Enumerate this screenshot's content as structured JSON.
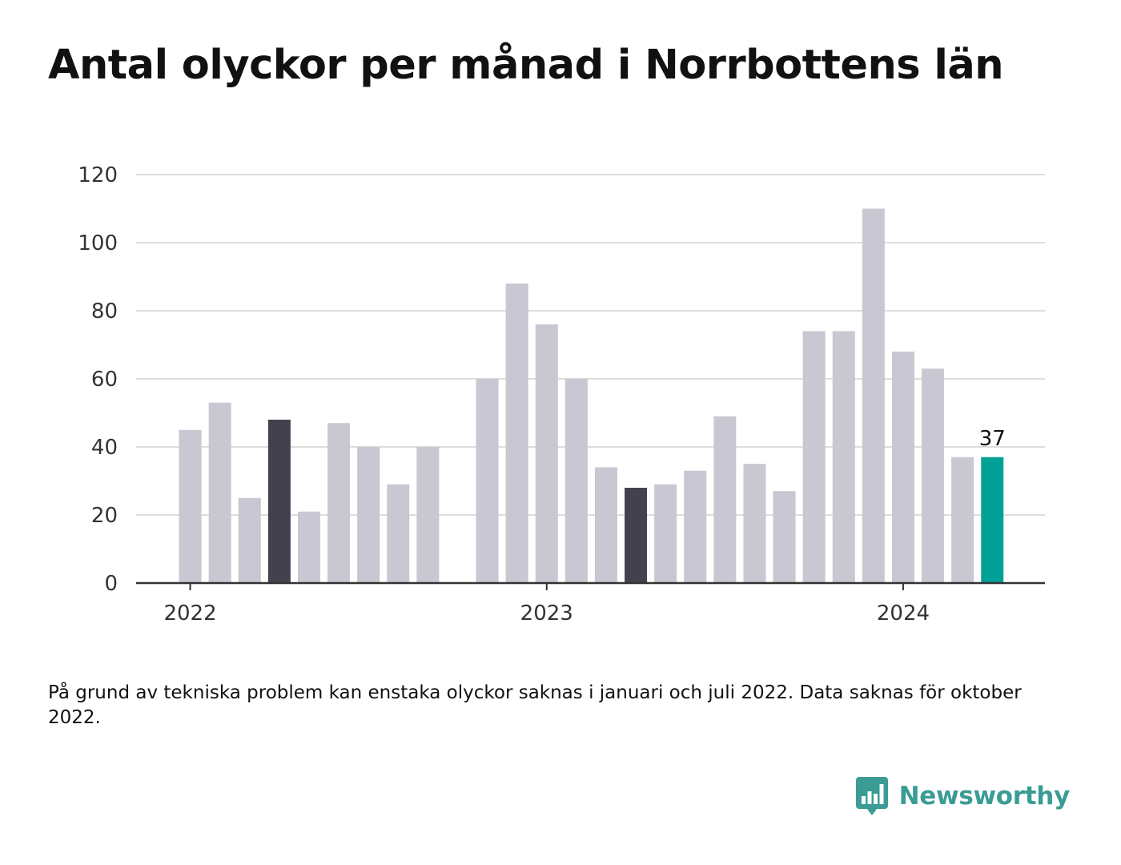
{
  "title": "Antal olyckor per månad i Norrbottens län",
  "footnote": "På grund av tekniska problem kan enstaka olyckor saknas i januari och juli 2022. Data saknas för oktober 2022.",
  "brand": {
    "name": "Newsworthy",
    "icon": "bar-chart-speech-bubble-icon",
    "color": "#3a9c95"
  },
  "colors": {
    "default_bar": "#c8c7d2",
    "dark_bar": "#43414d",
    "highlight_bar": "#00a196",
    "grid": "#dddddd",
    "axis": "#333333"
  },
  "chart_data": {
    "type": "bar",
    "title": "Antal olyckor per månad i Norrbottens län",
    "xlabel": "",
    "ylabel": "",
    "ylim": [
      0,
      120
    ],
    "yticks": [
      0,
      20,
      40,
      60,
      80,
      100,
      120
    ],
    "grid": true,
    "x_tick_labels": [
      {
        "label": "2022",
        "month": "2022-01"
      },
      {
        "label": "2023",
        "month": "2023-01"
      },
      {
        "label": "2024",
        "month": "2024-01"
      }
    ],
    "bars": [
      {
        "month": "2022-01",
        "value": 45,
        "color": "default"
      },
      {
        "month": "2022-02",
        "value": 53,
        "color": "default"
      },
      {
        "month": "2022-03",
        "value": 25,
        "color": "default"
      },
      {
        "month": "2022-04",
        "value": 48,
        "color": "dark"
      },
      {
        "month": "2022-05",
        "value": 21,
        "color": "default"
      },
      {
        "month": "2022-06",
        "value": 47,
        "color": "default"
      },
      {
        "month": "2022-07",
        "value": 40,
        "color": "default"
      },
      {
        "month": "2022-08",
        "value": 29,
        "color": "default"
      },
      {
        "month": "2022-09",
        "value": 40,
        "color": "default"
      },
      {
        "month": "2022-10",
        "value": null,
        "color": "default"
      },
      {
        "month": "2022-11",
        "value": 60,
        "color": "default"
      },
      {
        "month": "2022-12",
        "value": 88,
        "color": "default"
      },
      {
        "month": "2023-01",
        "value": 76,
        "color": "default"
      },
      {
        "month": "2023-02",
        "value": 60,
        "color": "default"
      },
      {
        "month": "2023-03",
        "value": 34,
        "color": "default"
      },
      {
        "month": "2023-04",
        "value": 28,
        "color": "dark"
      },
      {
        "month": "2023-05",
        "value": 29,
        "color": "default"
      },
      {
        "month": "2023-06",
        "value": 33,
        "color": "default"
      },
      {
        "month": "2023-07",
        "value": 49,
        "color": "default"
      },
      {
        "month": "2023-08",
        "value": 35,
        "color": "default"
      },
      {
        "month": "2023-09",
        "value": 27,
        "color": "default"
      },
      {
        "month": "2023-10",
        "value": 74,
        "color": "default"
      },
      {
        "month": "2023-11",
        "value": 74,
        "color": "default"
      },
      {
        "month": "2023-12",
        "value": 110,
        "color": "default"
      },
      {
        "month": "2024-01",
        "value": 68,
        "color": "default"
      },
      {
        "month": "2024-02",
        "value": 63,
        "color": "default"
      },
      {
        "month": "2024-03",
        "value": 37,
        "color": "default"
      },
      {
        "month": "2024-04",
        "value": 37,
        "color": "highlight",
        "label": "37"
      }
    ]
  }
}
